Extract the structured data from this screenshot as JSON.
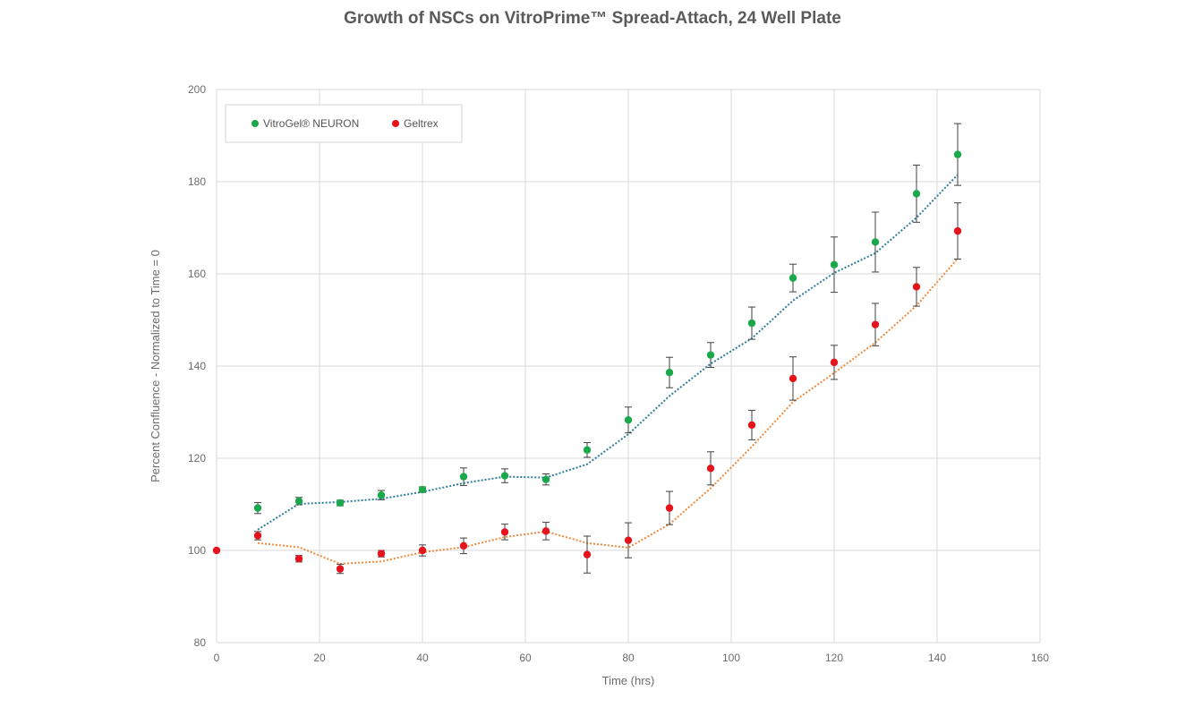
{
  "chart_data": {
    "type": "scatter",
    "title": "Growth of NSCs on VitroPrime™ Spread-Attach, 24 Well Plate",
    "xlabel": "Time (hrs)",
    "ylabel": "Percent Confluence - Normalized to Time = 0",
    "xlim": [
      0,
      160
    ],
    "ylim": [
      80,
      200
    ],
    "xticks": [
      0,
      20,
      40,
      60,
      80,
      100,
      120,
      140,
      160
    ],
    "yticks": [
      80,
      100,
      120,
      140,
      160,
      180,
      200
    ],
    "grid": true,
    "legend_position": "top-left",
    "series": [
      {
        "name": "VitroGel® NEURON",
        "color": "#1aa84b",
        "trend_color": "#2e7d9a",
        "x": [
          8,
          16,
          24,
          32,
          40,
          48,
          56,
          64,
          72,
          80,
          88,
          96,
          104,
          112,
          120,
          128,
          136,
          144
        ],
        "y": [
          109.2,
          110.7,
          110.3,
          112.0,
          113.2,
          116.0,
          116.2,
          115.4,
          121.8,
          128.3,
          138.6,
          142.4,
          149.3,
          159.1,
          162.0,
          166.9,
          177.4,
          185.9
        ],
        "err": [
          1.2,
          0.8,
          0.6,
          1.0,
          0.6,
          1.9,
          1.5,
          1.2,
          1.6,
          2.8,
          3.3,
          2.7,
          3.5,
          3.0,
          6.0,
          6.5,
          6.2,
          6.7
        ],
        "trend_x": [
          8,
          16,
          24,
          32,
          40,
          48,
          56,
          64,
          72,
          80,
          88,
          96,
          104,
          112,
          120,
          128,
          136,
          144
        ],
        "trend_y": [
          104.5,
          110.1,
          110.5,
          111.2,
          112.7,
          114.6,
          116.0,
          115.8,
          118.7,
          125.2,
          133.5,
          140.5,
          146.0,
          154.2,
          160.2,
          164.5,
          172.2,
          181.5
        ]
      },
      {
        "name": "Geltrex",
        "color": "#e3141b",
        "trend_color": "#f08a3c",
        "x": [
          0,
          8,
          16,
          24,
          32,
          40,
          48,
          56,
          64,
          72,
          80,
          88,
          96,
          104,
          112,
          120,
          128,
          136,
          144
        ],
        "y": [
          100.0,
          103.2,
          98.2,
          96.0,
          99.3,
          100.0,
          101.0,
          104.0,
          104.2,
          99.1,
          102.2,
          109.2,
          117.8,
          127.2,
          137.3,
          140.8,
          149.0,
          157.2,
          169.3
        ],
        "err": [
          0,
          0.9,
          0.7,
          1.0,
          0.7,
          1.2,
          1.7,
          1.7,
          1.9,
          4.0,
          3.8,
          3.6,
          3.6,
          3.2,
          4.7,
          3.7,
          4.6,
          4.2,
          6.1
        ],
        "trend_x": [
          8,
          16,
          24,
          32,
          40,
          48,
          56,
          64,
          72,
          80,
          88,
          96,
          104,
          112,
          120,
          128,
          136,
          144
        ],
        "trend_y": [
          101.6,
          100.7,
          97.1,
          97.6,
          99.6,
          100.7,
          102.9,
          104.1,
          101.6,
          100.6,
          105.7,
          113.5,
          122.5,
          132.2,
          138.5,
          145.1,
          153.1,
          163.3
        ]
      }
    ]
  }
}
